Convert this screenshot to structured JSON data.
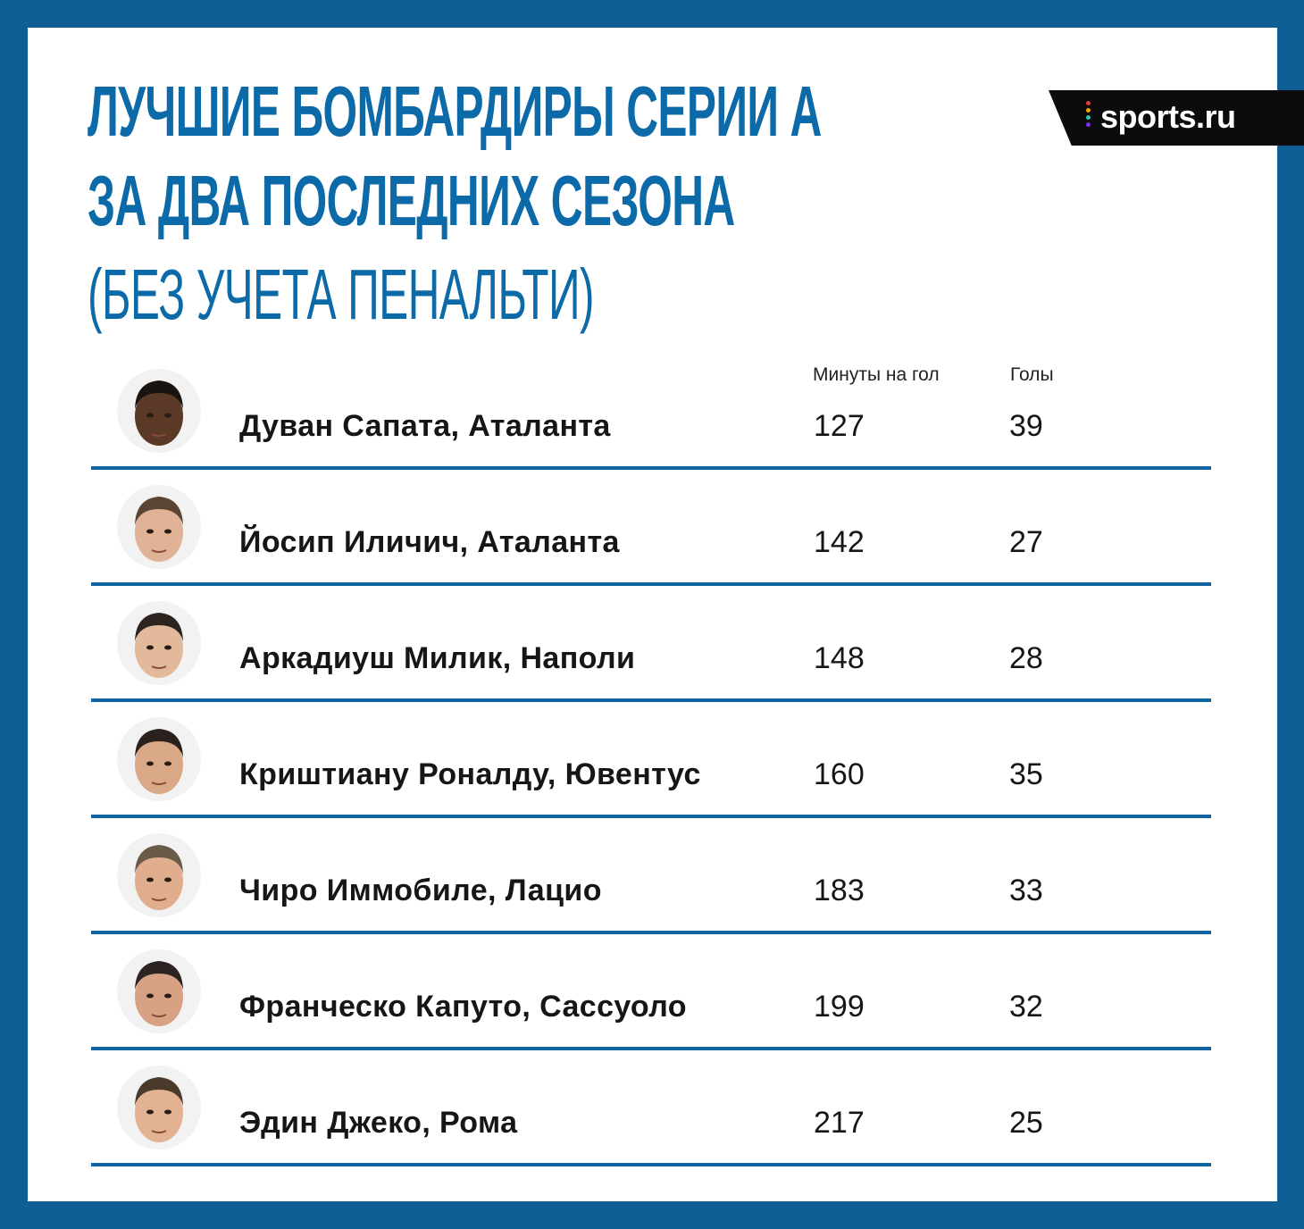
{
  "title": {
    "line1": "ЛУЧШИЕ БОМБАРДИРЫ СЕРИИ А",
    "line2": "ЗА ДВА ПОСЛЕДНИХ СЕЗОНА",
    "line3": "(БЕЗ УЧЕТА ПЕНАЛЬТИ)"
  },
  "logo": {
    "text": "sports.ru",
    "dot_colors": [
      "#e63946",
      "#f4a300",
      "#2ec4b6",
      "#7b2ff7"
    ]
  },
  "colors": {
    "accent": "#0d6aa8",
    "frame": "#0f5f96"
  },
  "chart_data": {
    "type": "table",
    "columns": [
      "",
      "Минуты на гол",
      "Голы"
    ],
    "rows": [
      {
        "player": "Дуван Сапата, Аталанта",
        "minutes_per_goal": "127",
        "goals": "39",
        "skin": "#5a3a26",
        "hair": "#1a1410"
      },
      {
        "player": "Йосип Иличич, Аталанта",
        "minutes_per_goal": "142",
        "goals": "27",
        "skin": "#e0b396",
        "hair": "#5a4535"
      },
      {
        "player": "Аркадиуш Милик, Наполи",
        "minutes_per_goal": "148",
        "goals": "28",
        "skin": "#e3b99b",
        "hair": "#2d2420"
      },
      {
        "player": "Криштиану Роналду, Ювентус",
        "minutes_per_goal": "160",
        "goals": "35",
        "skin": "#d9a987",
        "hair": "#2a211c"
      },
      {
        "player": "Чиро Иммобиле, Лацио",
        "minutes_per_goal": "183",
        "goals": "33",
        "skin": "#e0ad8e",
        "hair": "#6a5a48"
      },
      {
        "player": "Франческо Капуто, Сассуоло",
        "minutes_per_goal": "199",
        "goals": "32",
        "skin": "#d6a283",
        "hair": "#2b2420"
      },
      {
        "player": "Эдин Джеко, Рома",
        "minutes_per_goal": "217",
        "goals": "25",
        "skin": "#e2b293",
        "hair": "#4a3a2c"
      }
    ]
  }
}
